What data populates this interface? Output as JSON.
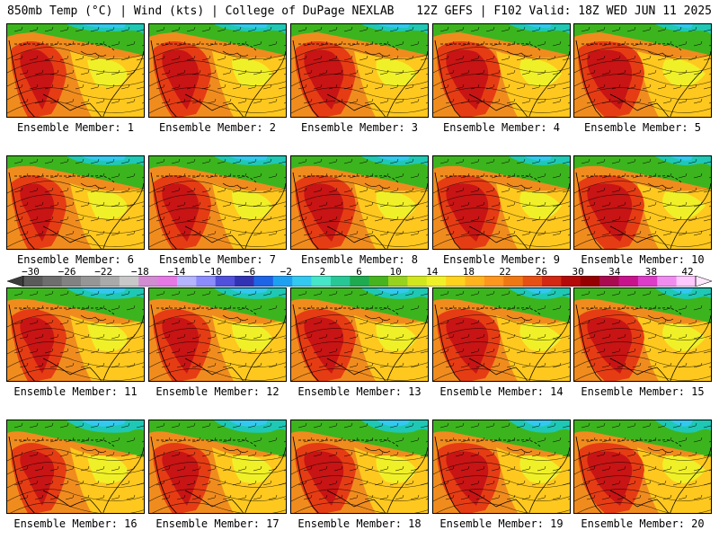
{
  "header": {
    "title_left": "850mb Temp (°C) | Wind (kts) | College of DuPage NEXLAB",
    "title_right": "12Z GEFS | F102 Valid: 18Z WED JUN 11 2025"
  },
  "members": [
    {
      "label": "Ensemble Member: 1"
    },
    {
      "label": "Ensemble Member: 2"
    },
    {
      "label": "Ensemble Member: 3"
    },
    {
      "label": "Ensemble Member: 4"
    },
    {
      "label": "Ensemble Member: 5"
    },
    {
      "label": "Ensemble Member: 6"
    },
    {
      "label": "Ensemble Member: 7"
    },
    {
      "label": "Ensemble Member: 8"
    },
    {
      "label": "Ensemble Member: 9"
    },
    {
      "label": "Ensemble Member: 10"
    },
    {
      "label": "Ensemble Member: 11"
    },
    {
      "label": "Ensemble Member: 12"
    },
    {
      "label": "Ensemble Member: 13"
    },
    {
      "label": "Ensemble Member: 14"
    },
    {
      "label": "Ensemble Member: 15"
    },
    {
      "label": "Ensemble Member: 16"
    },
    {
      "label": "Ensemble Member: 17"
    },
    {
      "label": "Ensemble Member: 18"
    },
    {
      "label": "Ensemble Member: 19"
    },
    {
      "label": "Ensemble Member: 20"
    }
  ],
  "colorbar": {
    "ticks": [
      "−30",
      "−26",
      "−22",
      "−18",
      "−14",
      "−10",
      "−6",
      "−2",
      "2",
      "6",
      "10",
      "14",
      "18",
      "22",
      "26",
      "30",
      "34",
      "38",
      "42"
    ],
    "colors": [
      "#5a5a5a",
      "#6e6e6e",
      "#828282",
      "#969696",
      "#aaaaaa",
      "#c8c8c8",
      "#d28cd2",
      "#e678e6",
      "#b4b4ff",
      "#8c8cff",
      "#5050dc",
      "#3232b4",
      "#1e64e6",
      "#1ea0f0",
      "#32c8f0",
      "#46e6c8",
      "#28c896",
      "#1eaa50",
      "#46b41e",
      "#96d21e",
      "#d2e61e",
      "#f0f028",
      "#ffd21e",
      "#ffb41e",
      "#ff961e",
      "#f07814",
      "#e65014",
      "#d22814",
      "#b40a0a",
      "#960000",
      "#aa0a50",
      "#c8148c",
      "#dc3cc8",
      "#f08cf0",
      "#ffc8ff"
    ],
    "map_colors": {
      "hot": "#c81414",
      "warm_red": "#e63c14",
      "orange": "#f08c1e",
      "yellow_orange": "#ffc81e",
      "yellow": "#f0f028",
      "yellow_green": "#b4dc1e",
      "green": "#3cb41e",
      "teal": "#1ec8b4",
      "cyan": "#32c8f0"
    }
  }
}
